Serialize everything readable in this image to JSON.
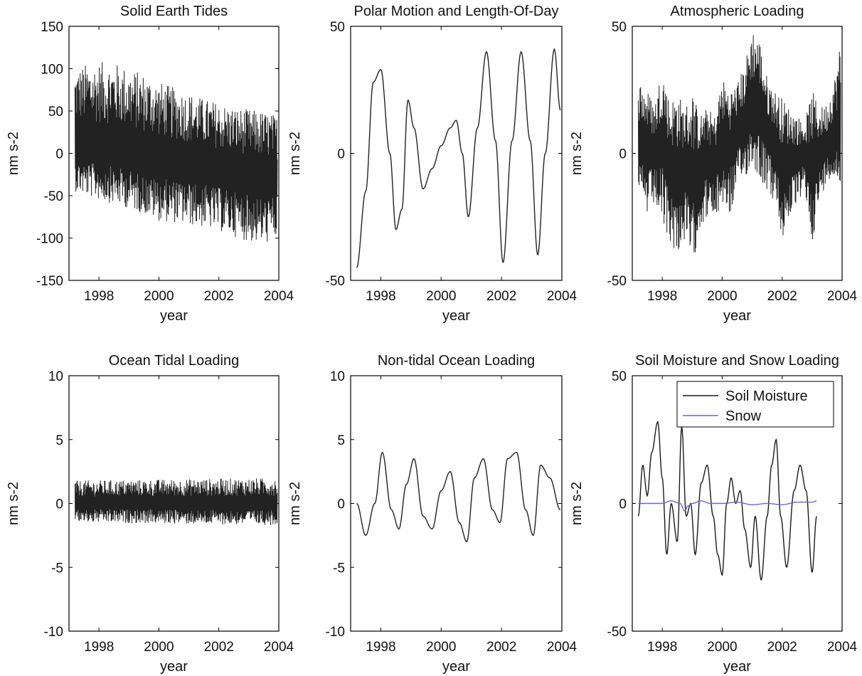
{
  "chart_data": [
    {
      "id": "solid-earth-tides",
      "type": "line",
      "title": "Solid Earth Tides",
      "xlabel": "year",
      "ylabel": "nm s-2",
      "xlim": [
        1997,
        2004
      ],
      "ylim": [
        -150,
        150
      ],
      "xticks": [
        1998,
        2000,
        2002,
        2004
      ],
      "yticks": [
        -150,
        -100,
        -50,
        0,
        50,
        100,
        150
      ],
      "series": [
        {
          "name": "",
          "color": "#222222",
          "x": [
            1997.2,
            1997.5,
            1998.0,
            1998.5,
            1999.0,
            1999.5,
            2000.0,
            2000.5,
            2001.0,
            2001.5,
            2002.0,
            2002.5,
            2003.0,
            2003.5,
            2003.95
          ],
          "upper": [
            100,
            105,
            108,
            108,
            100,
            95,
            85,
            78,
            72,
            65,
            60,
            55,
            52,
            50,
            45
          ],
          "lower": [
            -45,
            -50,
            -55,
            -60,
            -65,
            -72,
            -80,
            -82,
            -85,
            -88,
            -92,
            -98,
            -105,
            -108,
            -100
          ],
          "mean": [
            10,
            8,
            5,
            3,
            0,
            -5,
            -8,
            -10,
            -12,
            -15,
            -18,
            -22,
            -25,
            -28,
            -30
          ]
        }
      ]
    },
    {
      "id": "polar-motion",
      "type": "line",
      "title": "Polar Motion and Length-Of-Day",
      "xlabel": "year",
      "ylabel": "nm s-2",
      "xlim": [
        1997,
        2004
      ],
      "ylim": [
        -50,
        50
      ],
      "xticks": [
        1998,
        2000,
        2002,
        2004
      ],
      "yticks": [
        -50,
        0,
        50
      ],
      "series": [
        {
          "name": "",
          "color": "#222222",
          "x": [
            1997.2,
            1997.5,
            1997.75,
            1998.0,
            1998.3,
            1998.5,
            1998.7,
            1998.9,
            1999.1,
            1999.4,
            1999.7,
            2000.0,
            2000.3,
            2000.5,
            2000.7,
            2000.9,
            2001.2,
            2001.5,
            2001.8,
            2002.05,
            2002.35,
            2002.65,
            2002.95,
            2003.2,
            2003.45,
            2003.75,
            2003.95
          ],
          "y": [
            -45,
            -15,
            28,
            33,
            0,
            -30,
            -22,
            21,
            10,
            -14,
            -6,
            3,
            10,
            13,
            0,
            -25,
            10,
            40,
            5,
            -43,
            5,
            40,
            5,
            -40,
            0,
            41,
            17
          ]
        }
      ]
    },
    {
      "id": "atmospheric-loading",
      "type": "line",
      "title": "Atmospheric Loading",
      "xlabel": "year",
      "ylabel": "nm s-2",
      "xlim": [
        1997,
        2004
      ],
      "ylim": [
        -50,
        50
      ],
      "xticks": [
        1998,
        2000,
        2002,
        2004
      ],
      "yticks": [
        -50,
        0,
        50
      ],
      "series": [
        {
          "name": "",
          "color": "#222222",
          "x": [
            1997.2,
            1997.5,
            1997.75,
            1998.0,
            1998.25,
            1998.5,
            1998.75,
            1999.0,
            1999.25,
            1999.5,
            1999.75,
            2000.0,
            2000.25,
            2000.5,
            2000.75,
            2001.0,
            2001.25,
            2001.5,
            2001.75,
            2002.0,
            2002.25,
            2002.5,
            2002.75,
            2003.0,
            2003.25,
            2003.5,
            2003.75,
            2003.95
          ],
          "upper": [
            30,
            25,
            20,
            35,
            20,
            25,
            18,
            25,
            15,
            18,
            15,
            30,
            25,
            28,
            35,
            50,
            45,
            30,
            25,
            22,
            18,
            15,
            12,
            25,
            18,
            20,
            30,
            45
          ],
          "lower": [
            -20,
            -25,
            -20,
            -30,
            -35,
            -40,
            -35,
            -45,
            -30,
            -25,
            -28,
            -20,
            -25,
            -15,
            -10,
            -5,
            -10,
            -15,
            -20,
            -35,
            -25,
            -20,
            -15,
            -35,
            -20,
            -10,
            -10,
            -15
          ],
          "mean": [
            5,
            2,
            0,
            5,
            -5,
            -8,
            -5,
            -10,
            -5,
            -2,
            -5,
            5,
            2,
            8,
            12,
            20,
            18,
            8,
            5,
            -5,
            -3,
            -2,
            0,
            -5,
            0,
            3,
            8,
            10
          ]
        }
      ]
    },
    {
      "id": "ocean-tidal-loading",
      "type": "line",
      "title": "Ocean Tidal Loading",
      "xlabel": "year",
      "ylabel": "nm s-2",
      "xlim": [
        1997,
        2004
      ],
      "ylim": [
        -10,
        10
      ],
      "xticks": [
        1998,
        2000,
        2002,
        2004
      ],
      "yticks": [
        -10,
        -5,
        0,
        5,
        10
      ],
      "series": [
        {
          "name": "",
          "color": "#222222",
          "x": [
            1997.2,
            2003.95
          ],
          "upper": [
            1.8,
            2.0
          ],
          "lower": [
            -1.5,
            -1.7
          ],
          "mean": [
            0,
            0
          ]
        }
      ]
    },
    {
      "id": "non-tidal-ocean-loading",
      "type": "line",
      "title": "Non-tidal Ocean Loading",
      "xlabel": "year",
      "ylabel": "nm s-2",
      "xlim": [
        1997,
        2004
      ],
      "ylim": [
        -10,
        10
      ],
      "xticks": [
        1998,
        2000,
        2002,
        2004
      ],
      "yticks": [
        -10,
        -5,
        0,
        5,
        10
      ],
      "series": [
        {
          "name": "",
          "color": "#222222",
          "x": [
            1997.2,
            1997.5,
            1997.8,
            1998.05,
            1998.35,
            1998.6,
            1998.85,
            1999.1,
            1999.4,
            1999.7,
            2000.0,
            2000.3,
            2000.6,
            2000.85,
            2001.1,
            2001.4,
            2001.7,
            2001.95,
            2002.2,
            2002.5,
            2002.8,
            2003.05,
            2003.3,
            2003.6,
            2003.95
          ],
          "y": [
            0,
            -2.5,
            0,
            4,
            -0.5,
            -2,
            1.5,
            3.5,
            -1,
            -2,
            1,
            2.5,
            -1.5,
            -3,
            2,
            3.5,
            -0.5,
            -1.5,
            3.5,
            4,
            -0.5,
            -2.5,
            3,
            2,
            -0.5
          ]
        }
      ]
    },
    {
      "id": "soil-moisture-snow",
      "type": "line",
      "title": "Soil Moisture and Snow Loading",
      "xlabel": "year",
      "ylabel": "nm s-2",
      "xlim": [
        1997,
        2004
      ],
      "ylim": [
        -50,
        50
      ],
      "xticks": [
        1998,
        2000,
        2002,
        2004
      ],
      "yticks": [
        -50,
        0,
        50
      ],
      "legend_position": "top-right",
      "series": [
        {
          "name": "Soil Moisture",
          "color": "#1a1a1a",
          "x": [
            1997.2,
            1997.35,
            1997.5,
            1997.65,
            1997.85,
            1998.0,
            1998.15,
            1998.3,
            1998.5,
            1998.65,
            1998.8,
            1998.95,
            1999.1,
            1999.3,
            1999.5,
            1999.7,
            1999.85,
            2000.0,
            2000.15,
            2000.3,
            2000.45,
            2000.6,
            2000.75,
            2000.95,
            2001.1,
            2001.3,
            2001.5,
            2001.65,
            2001.8,
            2001.95,
            2002.15,
            2002.4,
            2002.6,
            2002.8,
            2003.0,
            2003.15
          ],
          "y": [
            -5,
            15,
            3,
            20,
            32,
            10,
            -20,
            0,
            -15,
            30,
            -5,
            0,
            -20,
            8,
            15,
            -5,
            -20,
            -28,
            0,
            10,
            0,
            5,
            -10,
            -25,
            -5,
            -30,
            -5,
            15,
            25,
            -5,
            -25,
            5,
            15,
            5,
            -27,
            -5
          ]
        },
        {
          "name": "Snow",
          "color": "#6666dd",
          "x": [
            1997.2,
            1998.0,
            1998.3,
            1998.6,
            1998.75,
            1998.85,
            1999.0,
            1999.3,
            1999.6,
            2000.0,
            2000.5,
            2001.0,
            2001.5,
            2002.0,
            2002.5,
            2003.0,
            2003.15
          ],
          "y": [
            0,
            0,
            1,
            0,
            -3,
            -1,
            0,
            1,
            0,
            0,
            0.5,
            -0.5,
            0,
            -0.5,
            0.5,
            0.5,
            1
          ]
        }
      ]
    }
  ]
}
